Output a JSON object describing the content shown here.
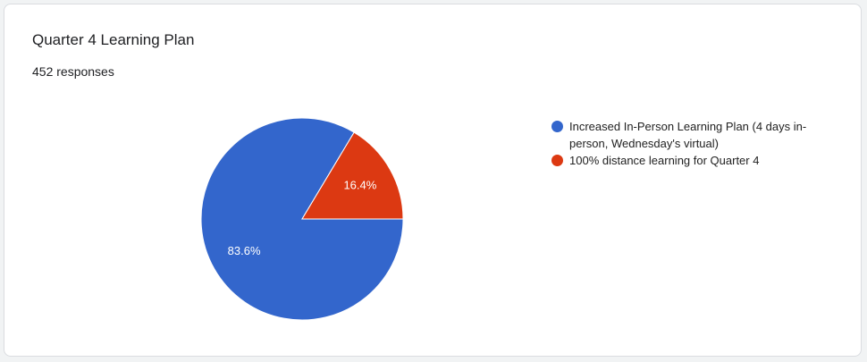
{
  "chart_data": {
    "type": "pie",
    "title": "Quarter 4 Learning Plan",
    "subtitle": "452 responses",
    "categories": [
      "Increased In-Person Learning Plan (4 days in-person, Wednesday's virtual)",
      "100% distance learning for Quarter 4"
    ],
    "values": [
      83.6,
      16.4
    ],
    "value_labels": [
      "83.6%",
      "16.4%"
    ],
    "colors": [
      "#3366cc",
      "#dc3912"
    ],
    "legend": "right"
  }
}
